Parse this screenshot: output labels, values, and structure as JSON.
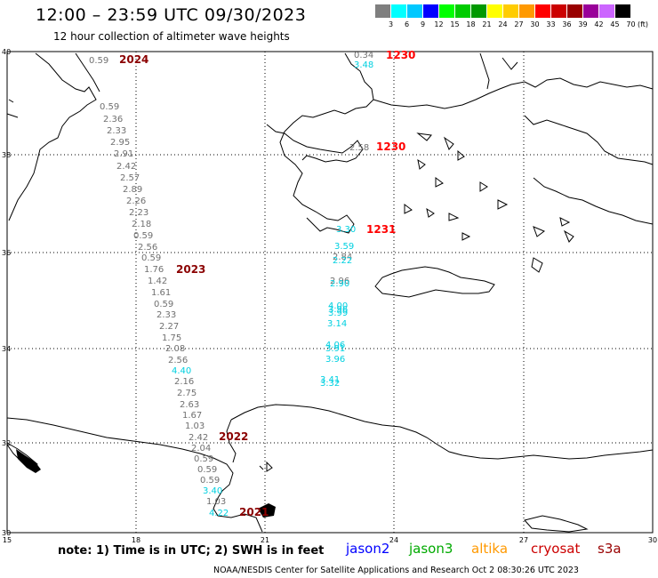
{
  "header": {
    "title": "12:00 – 23:59 UTC 09/30/2023",
    "subtitle": "12 hour collection of altimeter wave heights"
  },
  "color_scale": {
    "unit": "(ft)",
    "stops": [
      {
        "label": "3",
        "color": "#7f7f7f"
      },
      {
        "label": "6",
        "color": "#00ffff"
      },
      {
        "label": "9",
        "color": "#00c8ff"
      },
      {
        "label": "12",
        "color": "#0000ff"
      },
      {
        "label": "15",
        "color": "#00ff00"
      },
      {
        "label": "18",
        "color": "#00cc00"
      },
      {
        "label": "21",
        "color": "#009900"
      },
      {
        "label": "24",
        "color": "#ffff00"
      },
      {
        "label": "27",
        "color": "#ffcc00"
      },
      {
        "label": "30",
        "color": "#ff9900"
      },
      {
        "label": "33",
        "color": "#ff0000"
      },
      {
        "label": "36",
        "color": "#cc0000"
      },
      {
        "label": "39",
        "color": "#990000"
      },
      {
        "label": "42",
        "color": "#990099"
      },
      {
        "label": "45",
        "color": "#cc66ff"
      },
      {
        "label": "70",
        "color": "#000000"
      }
    ]
  },
  "axes": {
    "lon_labels": [
      "15",
      "18",
      "21",
      "24",
      "27",
      "30"
    ],
    "lat_labels": [
      "40",
      "38",
      "36",
      "34",
      "32",
      "30"
    ]
  },
  "track_west": {
    "values": [
      "0.59",
      "0.59",
      "2.36",
      "2.33",
      "2.95",
      "2.91",
      "2.42",
      "2.57",
      "2.89",
      "2.26",
      "2.23",
      "2.18",
      "0.59",
      "2.56",
      "0.59",
      "1.76",
      "1.42",
      "1.61",
      "0.59",
      "2.33",
      "2.27",
      "1.75",
      "2.08",
      "2.56",
      "4.40",
      "2.16",
      "2.75",
      "2.63",
      "1.67",
      "1.03",
      "2.42",
      "2.04",
      "0.59",
      "0.59",
      "0.59",
      "3.40",
      "1.03",
      "4.22"
    ],
    "colors": [
      "gray",
      "gray",
      "gray",
      "gray",
      "gray",
      "gray",
      "gray",
      "gray",
      "gray",
      "gray",
      "gray",
      "gray",
      "gray",
      "gray",
      "gray",
      "gray",
      "gray",
      "gray",
      "gray",
      "gray",
      "gray",
      "gray",
      "gray",
      "gray",
      "cyan",
      "gray",
      "gray",
      "gray",
      "gray",
      "gray",
      "gray",
      "gray",
      "gray",
      "gray",
      "gray",
      "cyan",
      "gray",
      "cyan"
    ],
    "time_tags": [
      "2024",
      "2023",
      "2022",
      "2021"
    ]
  },
  "track_east": {
    "values": [
      "0.34",
      "3.48",
      "2.58",
      "3.30",
      "3.59",
      "2.84",
      "2.22",
      "2.96",
      "2.90",
      "4.00",
      "3.96",
      "3.99",
      "3.14",
      "4.06",
      "3.91",
      "3.96",
      "3.41",
      "3.32"
    ],
    "colors": [
      "gray",
      "cyan",
      "gray",
      "cyan",
      "cyan",
      "gray",
      "cyan",
      "gray",
      "cyan",
      "cyan",
      "cyan",
      "cyan",
      "cyan",
      "cyan",
      "cyan",
      "cyan",
      "cyan",
      "cyan"
    ],
    "time_tags": [
      "1230",
      "1230",
      "1231"
    ]
  },
  "footer": {
    "note": "note:  1) Time is in UTC; 2) SWH is in feet",
    "satellites": [
      {
        "name": "jason2",
        "color": "#0000ff"
      },
      {
        "name": "jason3",
        "color": "#00aa00"
      },
      {
        "name": "altika",
        "color": "#ff9900"
      },
      {
        "name": "cryosat",
        "color": "#cc0000"
      },
      {
        "name": "s3a",
        "color": "#990000"
      }
    ],
    "credit": "NOAA/NESDIS Center for Satellite Applications and Research    Oct  2 08:30:26 UTC 2023"
  }
}
